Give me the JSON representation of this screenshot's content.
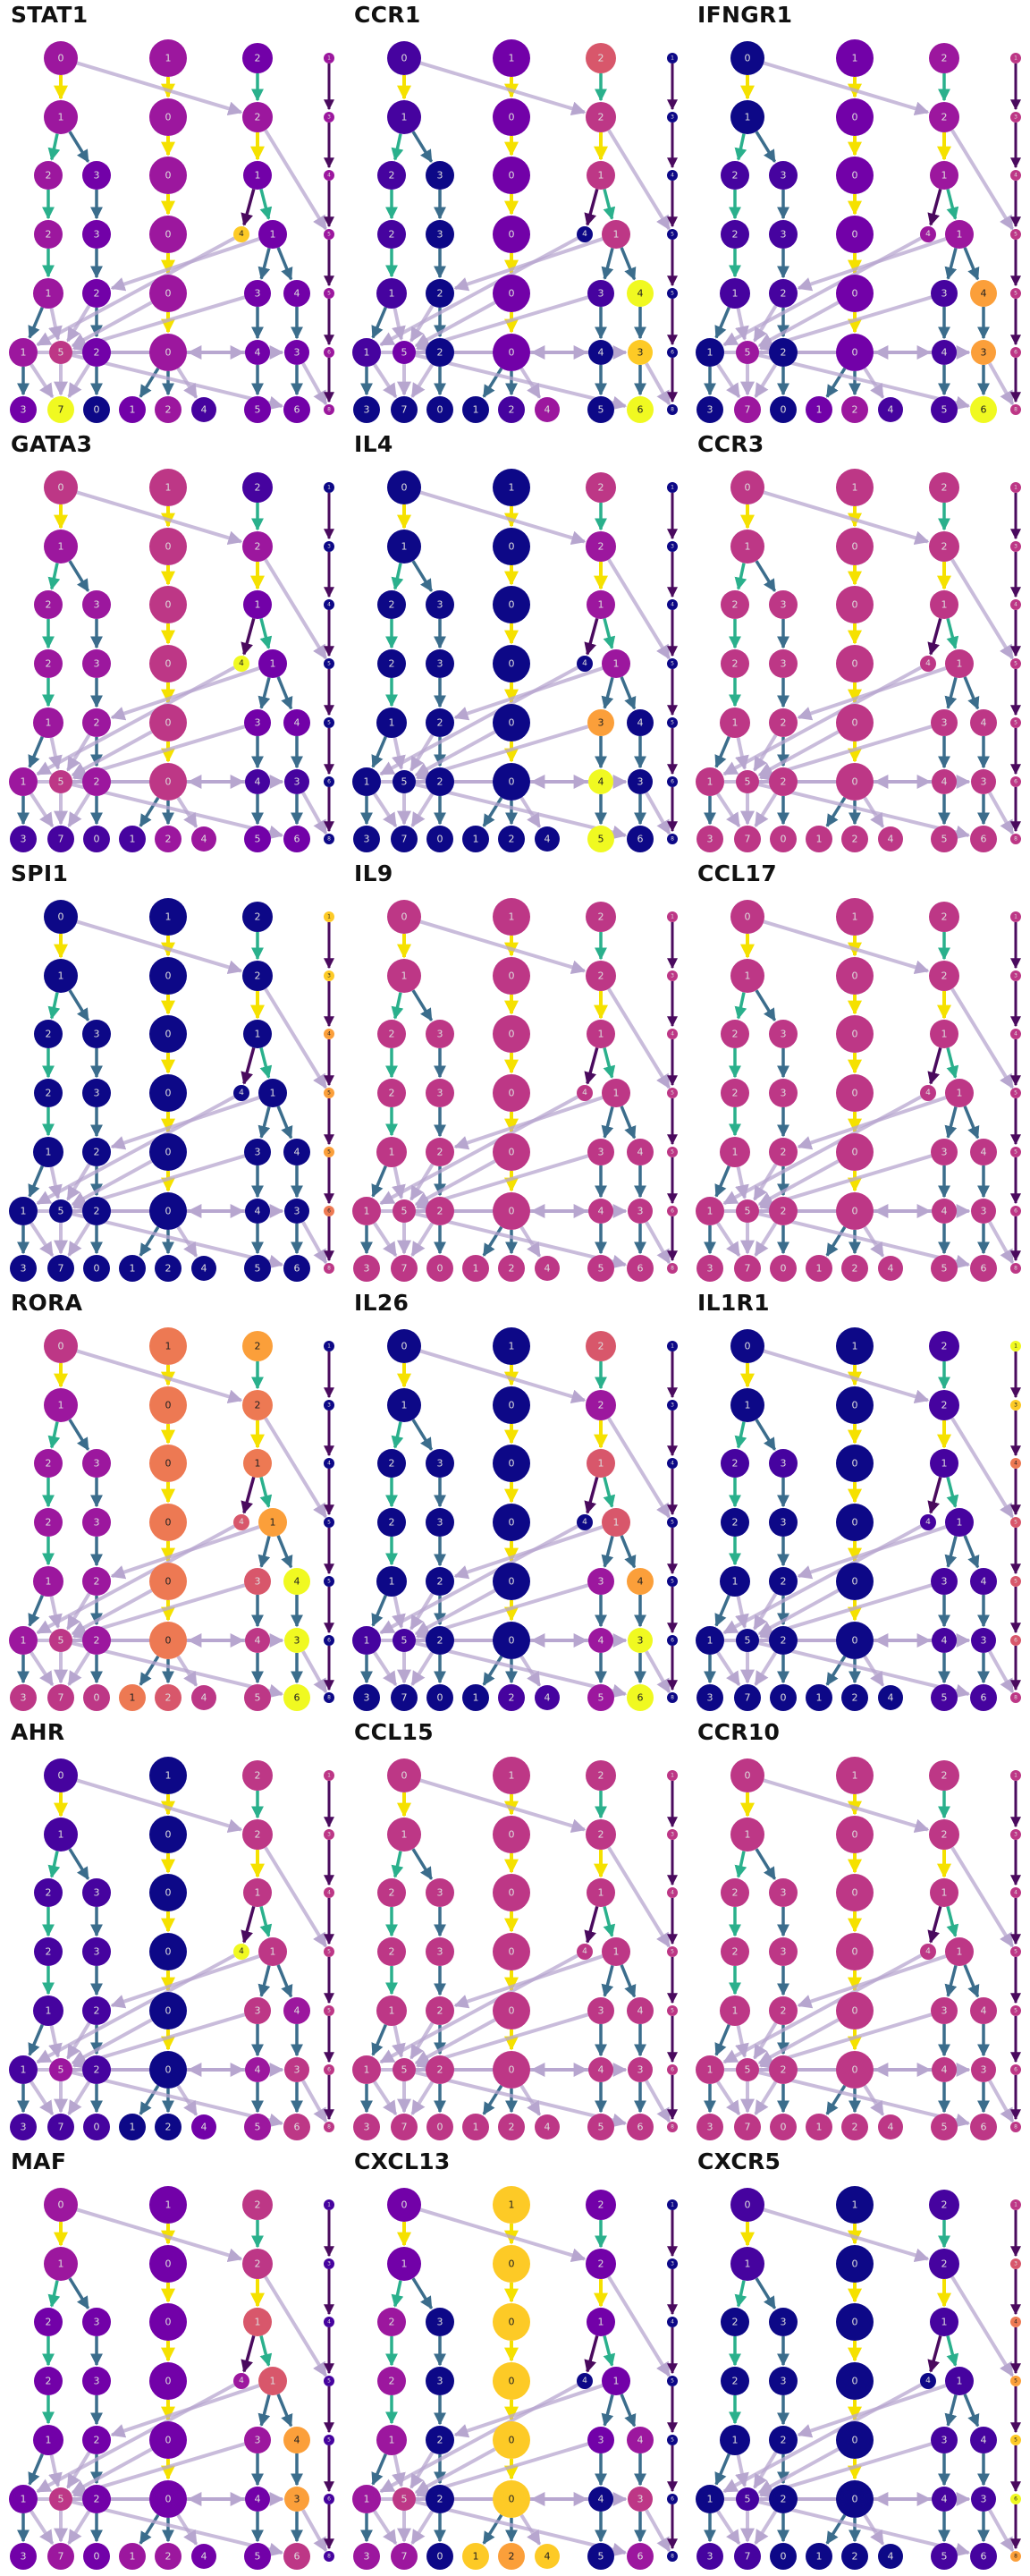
{
  "colormap": [
    "#0d0887",
    "#46039f",
    "#7201a8",
    "#9c179e",
    "#bd3786",
    "#d8576b",
    "#ed7953",
    "#fb9f3a",
    "#fdca26",
    "#f0f921"
  ],
  "edge_colors": {
    "vertical": "#f5e100",
    "branch_teal": "#2ab08c",
    "branch_blue": "#3b6d8c",
    "cross": "#b7a6cf",
    "side_arrow": "#4a0a5e"
  },
  "nodes": {
    "A1": {
      "label": "0"
    },
    "A2": {
      "label": "1"
    },
    "A3": {
      "label": "2"
    },
    "A3b": {
      "label": "3"
    },
    "A4": {
      "label": "2"
    },
    "A4b": {
      "label": "3"
    },
    "A5": {
      "label": "1"
    },
    "A5b": {
      "label": "2"
    },
    "A6": {
      "label": "1"
    },
    "A6b": {
      "label": "5"
    },
    "A6c": {
      "label": "2"
    },
    "B1": {
      "label": "1"
    },
    "B2": {
      "label": "0"
    },
    "B3": {
      "label": "0"
    },
    "B4": {
      "label": "0"
    },
    "B5": {
      "label": "0"
    },
    "B6": {
      "label": "0"
    },
    "C1": {
      "label": "2"
    },
    "C2": {
      "label": "2"
    },
    "C3": {
      "label": "1"
    },
    "C4a": {
      "label": "4"
    },
    "C4": {
      "label": "1"
    },
    "C5": {
      "label": "3"
    },
    "C5b": {
      "label": "4"
    },
    "C6": {
      "label": "4"
    },
    "C6b": {
      "label": "3"
    },
    "L1": {
      "label": "3"
    },
    "L2": {
      "label": "7"
    },
    "L3": {
      "label": "0"
    },
    "L4": {
      "label": "1"
    },
    "L5": {
      "label": "2"
    },
    "L6": {
      "label": "4"
    },
    "L7": {
      "label": "5"
    },
    "L8": {
      "label": "6"
    }
  },
  "side_labels": [
    "1",
    "3",
    "4",
    "5",
    "5",
    "6",
    "8"
  ],
  "panels": [
    {
      "title": "STAT1",
      "levels": {
        "A1": 3,
        "A2": 3,
        "A3": 3,
        "A3b": 2,
        "A4": 3,
        "A4b": 2,
        "A5": 3,
        "A5b": 2,
        "A6": 3,
        "A6b": 4,
        "A6c": 2,
        "B1": 3,
        "B2": 3,
        "B3": 3,
        "B4": 3,
        "B5": 3,
        "B6": 3,
        "C1": 2,
        "C2": 3,
        "C3": 2,
        "C4a": 8,
        "C4": 2,
        "C5": 2,
        "C5b": 2,
        "C6": 2,
        "C6b": 2,
        "L1": 2,
        "L2": 9,
        "L3": 0,
        "L4": 2,
        "L5": 3,
        "L6": 1,
        "L7": 2,
        "L8": 2,
        "S0": 3,
        "S1": 3,
        "S2": 3,
        "S3": 3,
        "S4": 3,
        "S5": 3,
        "S6": 3
      }
    },
    {
      "title": "CCR1",
      "levels": {
        "A1": 1,
        "A2": 1,
        "A3": 1,
        "A3b": 0,
        "A4": 1,
        "A4b": 0,
        "A5": 1,
        "A5b": 0,
        "A6": 1,
        "A6b": 2,
        "A6c": 0,
        "B1": 2,
        "B2": 2,
        "B3": 2,
        "B4": 2,
        "B5": 2,
        "B6": 2,
        "C1": 5,
        "C2": 4,
        "C3": 4,
        "C4a": 0,
        "C4": 4,
        "C5": 1,
        "C5b": 9,
        "C6": 0,
        "C6b": 8,
        "L1": 0,
        "L2": 0,
        "L3": 0,
        "L4": 0,
        "L5": 1,
        "L6": 3,
        "L7": 0,
        "L8": 9,
        "S0": 0,
        "S1": 0,
        "S2": 0,
        "S3": 0,
        "S4": 0,
        "S5": 0,
        "S6": 0
      }
    },
    {
      "title": "IFNGR1",
      "levels": {
        "A1": 0,
        "A2": 0,
        "A3": 1,
        "A3b": 1,
        "A4": 1,
        "A4b": 1,
        "A5": 1,
        "A5b": 1,
        "A6": 0,
        "A6b": 3,
        "A6c": 0,
        "B1": 2,
        "B2": 2,
        "B3": 2,
        "B4": 2,
        "B5": 2,
        "B6": 2,
        "C1": 3,
        "C2": 3,
        "C3": 3,
        "C4a": 3,
        "C4": 3,
        "C5": 1,
        "C5b": 7,
        "C6": 1,
        "C6b": 7,
        "L1": 0,
        "L2": 3,
        "L3": 0,
        "L4": 2,
        "L5": 3,
        "L6": 1,
        "L7": 1,
        "L8": 9,
        "S0": 4,
        "S1": 4,
        "S2": 4,
        "S3": 4,
        "S4": 4,
        "S5": 4,
        "S6": 4
      }
    },
    {
      "title": "GATA3",
      "levels": {
        "A1": 4,
        "A2": 3,
        "A3": 3,
        "A3b": 3,
        "A4": 3,
        "A4b": 3,
        "A5": 3,
        "A5b": 3,
        "A6": 3,
        "A6b": 4,
        "A6c": 3,
        "B1": 4,
        "B2": 4,
        "B3": 4,
        "B4": 4,
        "B5": 4,
        "B6": 4,
        "C1": 1,
        "C2": 3,
        "C3": 2,
        "C4a": 9,
        "C4": 2,
        "C5": 2,
        "C5b": 2,
        "C6": 1,
        "C6b": 1,
        "L1": 1,
        "L2": 1,
        "L3": 1,
        "L4": 1,
        "L5": 3,
        "L6": 3,
        "L7": 2,
        "L8": 2,
        "S0": 0,
        "S1": 0,
        "S2": 0,
        "S3": 0,
        "S4": 0,
        "S5": 0,
        "S6": 0
      }
    },
    {
      "title": "IL4",
      "levels": {
        "A1": 0,
        "A2": 0,
        "A3": 0,
        "A3b": 0,
        "A4": 0,
        "A4b": 0,
        "A5": 0,
        "A5b": 0,
        "A6": 0,
        "A6b": 0,
        "A6c": 0,
        "B1": 0,
        "B2": 0,
        "B3": 0,
        "B4": 0,
        "B5": 0,
        "B6": 0,
        "C1": 4,
        "C2": 3,
        "C3": 3,
        "C4a": 0,
        "C4": 3,
        "C5": 7,
        "C5b": 0,
        "C6": 9,
        "C6b": 0,
        "L1": 0,
        "L2": 0,
        "L3": 0,
        "L4": 0,
        "L5": 0,
        "L6": 0,
        "L7": 9,
        "L8": 0,
        "S0": 0,
        "S1": 0,
        "S2": 0,
        "S3": 0,
        "S4": 0,
        "S5": 0,
        "S6": 0
      }
    },
    {
      "title": "CCR3",
      "levels": {
        "A1": 4,
        "A2": 4,
        "A3": 4,
        "A3b": 4,
        "A4": 4,
        "A4b": 4,
        "A5": 4,
        "A5b": 4,
        "A6": 4,
        "A6b": 4,
        "A6c": 4,
        "B1": 4,
        "B2": 4,
        "B3": 4,
        "B4": 4,
        "B5": 4,
        "B6": 4,
        "C1": 4,
        "C2": 4,
        "C3": 4,
        "C4a": 4,
        "C4": 4,
        "C5": 4,
        "C5b": 4,
        "C6": 4,
        "C6b": 4,
        "L1": 4,
        "L2": 4,
        "L3": 4,
        "L4": 4,
        "L5": 4,
        "L6": 4,
        "L7": 4,
        "L8": 4,
        "S0": 4,
        "S1": 4,
        "S2": 4,
        "S3": 4,
        "S4": 4,
        "S5": 4,
        "S6": 4
      }
    },
    {
      "title": "SPI1",
      "levels": {
        "A1": 0,
        "A2": 0,
        "A3": 0,
        "A3b": 0,
        "A4": 0,
        "A4b": 0,
        "A5": 0,
        "A5b": 0,
        "A6": 0,
        "A6b": 0,
        "A6c": 0,
        "B1": 0,
        "B2": 0,
        "B3": 0,
        "B4": 0,
        "B5": 0,
        "B6": 0,
        "C1": 0,
        "C2": 0,
        "C3": 0,
        "C4a": 0,
        "C4": 0,
        "C5": 0,
        "C5b": 0,
        "C6": 0,
        "C6b": 0,
        "L1": 0,
        "L2": 0,
        "L3": 0,
        "L4": 0,
        "L5": 0,
        "L6": 0,
        "L7": 0,
        "L8": 0,
        "S0": 8,
        "S1": 8,
        "S2": 7,
        "S3": 7,
        "S4": 7,
        "S5": 6,
        "S6": 4
      }
    },
    {
      "title": "IL9",
      "levels": {
        "A1": 4,
        "A2": 4,
        "A3": 4,
        "A3b": 4,
        "A4": 4,
        "A4b": 4,
        "A5": 4,
        "A5b": 4,
        "A6": 4,
        "A6b": 4,
        "A6c": 4,
        "B1": 4,
        "B2": 4,
        "B3": 4,
        "B4": 4,
        "B5": 4,
        "B6": 4,
        "C1": 4,
        "C2": 4,
        "C3": 4,
        "C4a": 4,
        "C4": 4,
        "C5": 4,
        "C5b": 4,
        "C6": 4,
        "C6b": 4,
        "L1": 4,
        "L2": 4,
        "L3": 4,
        "L4": 4,
        "L5": 4,
        "L6": 4,
        "L7": 4,
        "L8": 4,
        "S0": 4,
        "S1": 4,
        "S2": 4,
        "S3": 4,
        "S4": 4,
        "S5": 4,
        "S6": 4
      }
    },
    {
      "title": "CCL17",
      "levels": {
        "A1": 4,
        "A2": 4,
        "A3": 4,
        "A3b": 4,
        "A4": 4,
        "A4b": 4,
        "A5": 4,
        "A5b": 4,
        "A6": 4,
        "A6b": 4,
        "A6c": 4,
        "B1": 4,
        "B2": 4,
        "B3": 4,
        "B4": 4,
        "B5": 4,
        "B6": 4,
        "C1": 4,
        "C2": 4,
        "C3": 4,
        "C4a": 4,
        "C4": 4,
        "C5": 4,
        "C5b": 4,
        "C6": 4,
        "C6b": 4,
        "L1": 4,
        "L2": 4,
        "L3": 4,
        "L4": 4,
        "L5": 4,
        "L6": 4,
        "L7": 4,
        "L8": 4,
        "S0": 4,
        "S1": 4,
        "S2": 4,
        "S3": 4,
        "S4": 4,
        "S5": 4,
        "S6": 4
      }
    },
    {
      "title": "RORA",
      "levels": {
        "A1": 4,
        "A2": 3,
        "A3": 3,
        "A3b": 3,
        "A4": 3,
        "A4b": 3,
        "A5": 3,
        "A5b": 3,
        "A6": 3,
        "A6b": 4,
        "A6c": 3,
        "B1": 6,
        "B2": 6,
        "B3": 6,
        "B4": 6,
        "B5": 6,
        "B6": 6,
        "C1": 7,
        "C2": 6,
        "C3": 6,
        "C4a": 5,
        "C4": 7,
        "C5": 5,
        "C5b": 9,
        "C6": 4,
        "C6b": 9,
        "L1": 4,
        "L2": 4,
        "L3": 4,
        "L4": 6,
        "L5": 5,
        "L6": 4,
        "L7": 4,
        "L8": 9,
        "S0": 0,
        "S1": 0,
        "S2": 0,
        "S3": 0,
        "S4": 0,
        "S5": 0,
        "S6": 0
      }
    },
    {
      "title": "IL26",
      "levels": {
        "A1": 0,
        "A2": 0,
        "A3": 0,
        "A3b": 0,
        "A4": 0,
        "A4b": 0,
        "A5": 0,
        "A5b": 0,
        "A6": 1,
        "A6b": 1,
        "A6c": 0,
        "B1": 0,
        "B2": 0,
        "B3": 0,
        "B4": 0,
        "B5": 0,
        "B6": 0,
        "C1": 5,
        "C2": 3,
        "C3": 5,
        "C4a": 0,
        "C4": 5,
        "C5": 3,
        "C5b": 7,
        "C6": 3,
        "C6b": 9,
        "L1": 0,
        "L2": 0,
        "L3": 0,
        "L4": 0,
        "L5": 1,
        "L6": 1,
        "L7": 3,
        "L8": 9,
        "S0": 0,
        "S1": 0,
        "S2": 0,
        "S3": 0,
        "S4": 0,
        "S5": 0,
        "S6": 0
      }
    },
    {
      "title": "IL1R1",
      "levels": {
        "A1": 0,
        "A2": 0,
        "A3": 1,
        "A3b": 1,
        "A4": 0,
        "A4b": 0,
        "A5": 0,
        "A5b": 0,
        "A6": 0,
        "A6b": 0,
        "A6c": 0,
        "B1": 0,
        "B2": 0,
        "B3": 0,
        "B4": 0,
        "B5": 0,
        "B6": 0,
        "C1": 1,
        "C2": 1,
        "C3": 1,
        "C4a": 1,
        "C4": 1,
        "C5": 1,
        "C5b": 1,
        "C6": 1,
        "C6b": 1,
        "L1": 0,
        "L2": 0,
        "L3": 0,
        "L4": 0,
        "L5": 0,
        "L6": 0,
        "L7": 1,
        "L8": 1,
        "S0": 9,
        "S1": 8,
        "S2": 6,
        "S3": 5,
        "S4": 5,
        "S5": 5,
        "S6": 4
      }
    },
    {
      "title": "AHR",
      "levels": {
        "A1": 1,
        "A2": 1,
        "A3": 1,
        "A3b": 1,
        "A4": 1,
        "A4b": 1,
        "A5": 1,
        "A5b": 1,
        "A6": 1,
        "A6b": 3,
        "A6c": 1,
        "B1": 0,
        "B2": 0,
        "B3": 0,
        "B4": 0,
        "B5": 0,
        "B6": 0,
        "C1": 4,
        "C2": 4,
        "C3": 4,
        "C4a": 9,
        "C4": 4,
        "C5": 4,
        "C5b": 3,
        "C6": 3,
        "C6b": 4,
        "L1": 1,
        "L2": 1,
        "L3": 1,
        "L4": 0,
        "L5": 0,
        "L6": 2,
        "L7": 3,
        "L8": 4,
        "S0": 4,
        "S1": 4,
        "S2": 4,
        "S3": 4,
        "S4": 4,
        "S5": 4,
        "S6": 4
      }
    },
    {
      "title": "CCL15",
      "levels": {
        "A1": 4,
        "A2": 4,
        "A3": 4,
        "A3b": 4,
        "A4": 4,
        "A4b": 4,
        "A5": 4,
        "A5b": 4,
        "A6": 4,
        "A6b": 4,
        "A6c": 4,
        "B1": 4,
        "B2": 4,
        "B3": 4,
        "B4": 4,
        "B5": 4,
        "B6": 4,
        "C1": 4,
        "C2": 4,
        "C3": 4,
        "C4a": 4,
        "C4": 4,
        "C5": 4,
        "C5b": 4,
        "C6": 4,
        "C6b": 4,
        "L1": 4,
        "L2": 4,
        "L3": 4,
        "L4": 4,
        "L5": 4,
        "L6": 4,
        "L7": 4,
        "L8": 4,
        "S0": 4,
        "S1": 4,
        "S2": 4,
        "S3": 4,
        "S4": 4,
        "S5": 4,
        "S6": 4
      }
    },
    {
      "title": "CCR10",
      "levels": {
        "A1": 4,
        "A2": 4,
        "A3": 4,
        "A3b": 4,
        "A4": 4,
        "A4b": 4,
        "A5": 4,
        "A5b": 4,
        "A6": 4,
        "A6b": 4,
        "A6c": 4,
        "B1": 4,
        "B2": 4,
        "B3": 4,
        "B4": 4,
        "B5": 4,
        "B6": 4,
        "C1": 4,
        "C2": 4,
        "C3": 4,
        "C4a": 4,
        "C4": 4,
        "C5": 4,
        "C5b": 4,
        "C6": 4,
        "C6b": 4,
        "L1": 4,
        "L2": 4,
        "L3": 4,
        "L4": 4,
        "L5": 4,
        "L6": 4,
        "L7": 4,
        "L8": 4,
        "S0": 4,
        "S1": 4,
        "S2": 4,
        "S3": 4,
        "S4": 4,
        "S5": 4,
        "S6": 4
      }
    },
    {
      "title": "MAF",
      "levels": {
        "A1": 3,
        "A2": 3,
        "A3": 2,
        "A3b": 2,
        "A4": 2,
        "A4b": 2,
        "A5": 2,
        "A5b": 2,
        "A6": 2,
        "A6b": 4,
        "A6c": 2,
        "B1": 2,
        "B2": 2,
        "B3": 2,
        "B4": 2,
        "B5": 2,
        "B6": 2,
        "C1": 4,
        "C2": 4,
        "C3": 5,
        "C4a": 3,
        "C4": 5,
        "C5": 3,
        "C5b": 7,
        "C6": 2,
        "C6b": 7,
        "L1": 2,
        "L2": 3,
        "L3": 2,
        "L4": 3,
        "L5": 3,
        "L6": 2,
        "L7": 2,
        "L8": 4,
        "S0": 1,
        "S1": 1,
        "S2": 1,
        "S3": 1,
        "S4": 1,
        "S5": 1,
        "S6": 1
      }
    },
    {
      "title": "CXCL13",
      "levels": {
        "A1": 2,
        "A2": 2,
        "A3": 3,
        "A3b": 0,
        "A4": 3,
        "A4b": 0,
        "A5": 3,
        "A5b": 0,
        "A6": 3,
        "A6b": 4,
        "A6c": 0,
        "B1": 8,
        "B2": 8,
        "B3": 8,
        "B4": 8,
        "B5": 8,
        "B6": 8,
        "C1": 2,
        "C2": 2,
        "C3": 2,
        "C4a": 0,
        "C4": 2,
        "C5": 2,
        "C5b": 3,
        "C6": 0,
        "C6b": 4,
        "L1": 3,
        "L2": 3,
        "L3": 0,
        "L4": 8,
        "L5": 7,
        "L6": 8,
        "L7": 0,
        "L8": 3,
        "S0": 0,
        "S1": 0,
        "S2": 0,
        "S3": 0,
        "S4": 0,
        "S5": 0,
        "S6": 0
      }
    },
    {
      "title": "CXCR5",
      "levels": {
        "A1": 1,
        "A2": 1,
        "A3": 0,
        "A3b": 0,
        "A4": 0,
        "A4b": 0,
        "A5": 0,
        "A5b": 0,
        "A6": 0,
        "A6b": 1,
        "A6c": 0,
        "B1": 0,
        "B2": 0,
        "B3": 0,
        "B4": 0,
        "B5": 0,
        "B6": 0,
        "C1": 1,
        "C2": 1,
        "C3": 1,
        "C4a": 0,
        "C4": 1,
        "C5": 1,
        "C5b": 1,
        "C6": 1,
        "C6b": 1,
        "L1": 1,
        "L2": 1,
        "L3": 0,
        "L4": 0,
        "L5": 0,
        "L6": 0,
        "L7": 1,
        "L8": 1,
        "S0": 4,
        "S1": 5,
        "S2": 6,
        "S3": 7,
        "S4": 8,
        "S5": 9,
        "S6": 7
      }
    }
  ]
}
